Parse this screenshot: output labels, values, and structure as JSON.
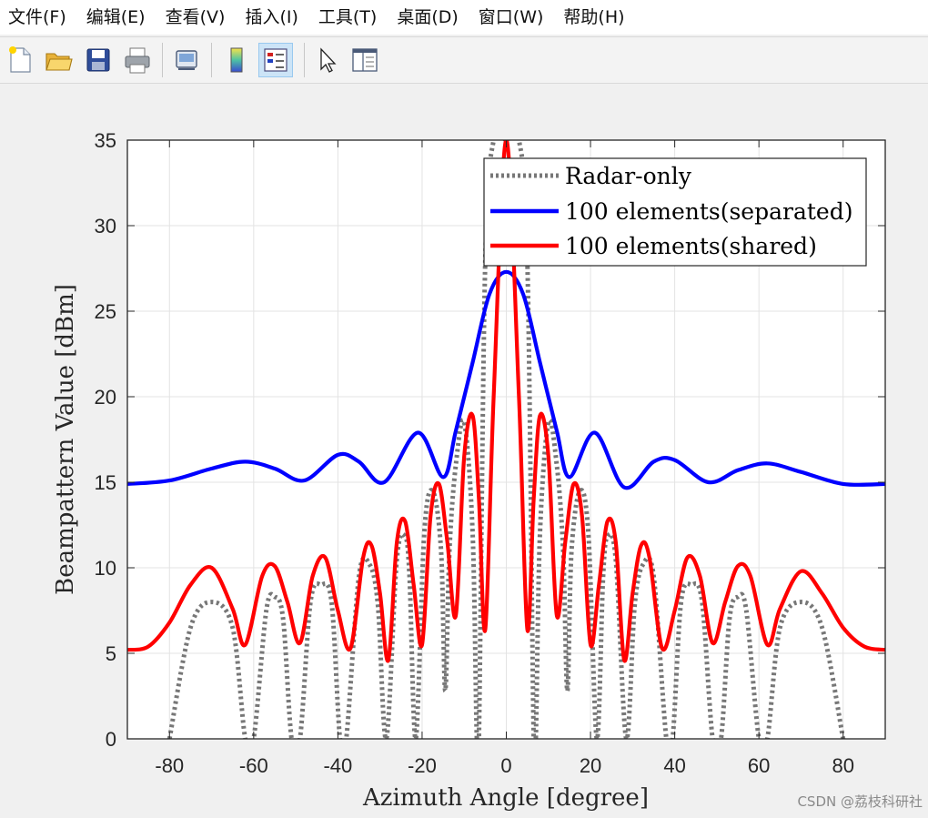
{
  "menubar": {
    "items": [
      "文件(F)",
      "编辑(E)",
      "查看(V)",
      "插入(I)",
      "工具(T)",
      "桌面(D)",
      "窗口(W)",
      "帮助(H)"
    ]
  },
  "toolbar": {
    "buttons": [
      "new-file",
      "open-folder",
      "save",
      "print",
      "link-plot",
      "insert-colorbar",
      "insert-legend",
      "edit-plot-arrow",
      "property-inspector"
    ],
    "active": "insert-legend"
  },
  "chart_data": {
    "type": "line",
    "xlabel": "Azimuth Angle [degree]",
    "ylabel": "Beampattern Value [dBm]",
    "xlim": [
      -90,
      90
    ],
    "ylim": [
      0,
      35
    ],
    "xticks": [
      -80,
      -60,
      -40,
      -20,
      0,
      20,
      40,
      60,
      80
    ],
    "yticks": [
      0,
      5,
      10,
      15,
      20,
      25,
      30,
      35
    ],
    "grid": true,
    "legend_position": "top-right",
    "series": [
      {
        "name": "Radar-only",
        "color": "#777777",
        "style": "dotted",
        "x": [
          -80,
          -75,
          -70,
          -65,
          -62,
          -60,
          -57,
          -55,
          -53,
          -51,
          -49,
          -46.5,
          -44,
          -41.5,
          -39.5,
          -38,
          -35,
          -32.5,
          -30.5,
          -28.5,
          -26,
          -24,
          -23,
          -21.5,
          -19.5,
          -17.5,
          -15.5,
          -14.5,
          -13.5,
          -12,
          -10,
          -8,
          -7,
          -6.5,
          -5,
          -3,
          0,
          3,
          5,
          6.5,
          7,
          8,
          10,
          12,
          13.5,
          14.5,
          15.5,
          17.5,
          19.5,
          21.5,
          23,
          24,
          26,
          28.5,
          30.5,
          32.5,
          35,
          38,
          39.5,
          41.5,
          44,
          46.5,
          49,
          51,
          53,
          55,
          57,
          60,
          62,
          65,
          70,
          75,
          80
        ],
        "y": [
          0,
          6.5,
          8,
          6.5,
          0,
          0,
          7.5,
          8.3,
          7,
          0,
          0,
          8,
          9,
          8,
          0,
          0,
          9.5,
          10.2,
          7.8,
          0,
          10.5,
          11.8,
          9.5,
          0,
          12,
          14.5,
          11,
          2.8,
          11,
          16,
          18.5,
          12,
          0,
          0,
          28,
          35,
          36,
          35,
          28,
          0,
          0,
          12,
          18.5,
          16,
          11,
          2.8,
          11,
          14.5,
          12,
          0,
          9.5,
          11.8,
          10.5,
          0,
          7.8,
          10.2,
          9.5,
          0,
          0,
          8,
          9,
          8,
          0,
          0,
          7,
          8.3,
          7.5,
          0,
          0,
          6.5,
          8,
          6.5,
          0
        ]
      },
      {
        "name": "100 elements(separated)",
        "color": "#0000ff",
        "style": "solid",
        "x": [
          -90,
          -80,
          -70,
          -62,
          -55,
          -48,
          -40,
          -35,
          -29,
          -21,
          -15,
          -12,
          -8,
          -4,
          0,
          4,
          8,
          12,
          15,
          21,
          28,
          35,
          40,
          48,
          55,
          62,
          70,
          80,
          90
        ],
        "y": [
          14.9,
          15.1,
          15.8,
          16.2,
          15.8,
          15.1,
          16.6,
          16.2,
          15,
          17.9,
          15.3,
          18,
          22,
          26,
          27.3,
          26,
          22,
          18,
          15.3,
          17.9,
          14.7,
          16.2,
          16.3,
          15,
          15.7,
          16.1,
          15.6,
          14.9,
          14.9
        ]
      },
      {
        "name": "100 elements(shared)",
        "color": "#ff0000",
        "style": "solid",
        "x": [
          -90,
          -85,
          -80,
          -75,
          -70,
          -65,
          -62,
          -58,
          -55,
          -52,
          -49,
          -46,
          -43,
          -40,
          -37,
          -34,
          -32,
          -30,
          -28,
          -26,
          -24,
          -22,
          -20,
          -18,
          -16,
          -14,
          -12,
          -10,
          -8,
          -6.5,
          -5,
          -3,
          0,
          3,
          5,
          6.5,
          8,
          10,
          12,
          14,
          16,
          18,
          20,
          22,
          24,
          26,
          28,
          30,
          32,
          34,
          37,
          40,
          43,
          46,
          49,
          52,
          55,
          58,
          62,
          65,
          70,
          75,
          80,
          85,
          90
        ],
        "y": [
          5.2,
          5.4,
          6.8,
          9,
          10,
          7.6,
          5.5,
          9.5,
          10.1,
          8,
          5.6,
          9.5,
          10.6,
          7.5,
          5.3,
          10.6,
          11.3,
          8.5,
          4.6,
          11.5,
          12.7,
          9,
          5.5,
          13,
          14.9,
          11.5,
          7.2,
          16.5,
          18.9,
          14,
          6.4,
          20,
          35.5,
          20,
          6.4,
          14,
          18.9,
          16.5,
          7.2,
          11.5,
          14.9,
          13,
          5.5,
          9,
          12.7,
          11.5,
          4.6,
          8.5,
          11.3,
          10.6,
          5.3,
          7.5,
          10.6,
          9.5,
          5.6,
          8,
          10.1,
          9.5,
          5.5,
          7.6,
          9.8,
          8.5,
          6.5,
          5.4,
          5.2
        ]
      }
    ]
  },
  "watermark": "CSDN @荔枝科研社"
}
